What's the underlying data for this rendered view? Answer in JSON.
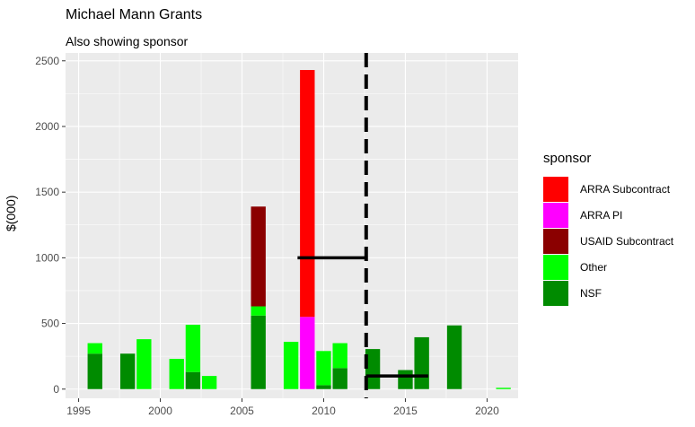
{
  "title": "Michael Mann Grants",
  "subtitle": "Also showing sponsor",
  "chart_data": {
    "type": "bar",
    "stacked": true,
    "title": "Michael Mann Grants",
    "subtitle": "Also showing sponsor",
    "xlabel": "",
    "ylabel": "$(000)",
    "xlim": [
      1994.2,
      2021.9
    ],
    "ylim": [
      -70,
      2560
    ],
    "x_ticks": [
      1995,
      2000,
      2005,
      2010,
      2015,
      2020
    ],
    "y_ticks": [
      0,
      500,
      1000,
      1500,
      2000,
      2500
    ],
    "grid": true,
    "legend_title": "sponsor",
    "legend_position": "right",
    "series": [
      {
        "name": "ARRA Subcontract",
        "color": "#FF0000"
      },
      {
        "name": "ARRA PI",
        "color": "#FF00FF"
      },
      {
        "name": "USAID Subcontract",
        "color": "#8B0000"
      },
      {
        "name": "Other",
        "color": "#00FF00"
      },
      {
        "name": "NSF",
        "color": "#008B00"
      }
    ],
    "bars": [
      {
        "x": 1996,
        "NSF": 270,
        "Other": 80
      },
      {
        "x": 1998,
        "NSF": 270
      },
      {
        "x": 1999,
        "Other": 380
      },
      {
        "x": 2001,
        "Other": 230
      },
      {
        "x": 2002,
        "NSF": 130,
        "Other": 360
      },
      {
        "x": 2003,
        "Other": 100
      },
      {
        "x": 2006,
        "NSF": 560,
        "Other": 70,
        "USAID Subcontract": 760
      },
      {
        "x": 2008,
        "Other": 360
      },
      {
        "x": 2009,
        "ARRA PI": 550,
        "ARRA Subcontract": 1880
      },
      {
        "x": 2010,
        "NSF": 30,
        "Other": 260
      },
      {
        "x": 2011,
        "NSF": 160,
        "Other": 190
      },
      {
        "x": 2013,
        "NSF": 305
      },
      {
        "x": 2015,
        "NSF": 145
      },
      {
        "x": 2016,
        "NSF": 395
      },
      {
        "x": 2018,
        "NSF": 485
      },
      {
        "x": 2021,
        "Other": 10
      }
    ],
    "reference_lines": [
      {
        "type": "vertical",
        "x": 2012.6,
        "style": "dashed"
      },
      {
        "type": "segment",
        "x": [
          2008.4,
          2012.6
        ],
        "y": 1000
      },
      {
        "type": "segment",
        "x": [
          2012.6,
          2016.4
        ],
        "y": 100
      }
    ]
  }
}
